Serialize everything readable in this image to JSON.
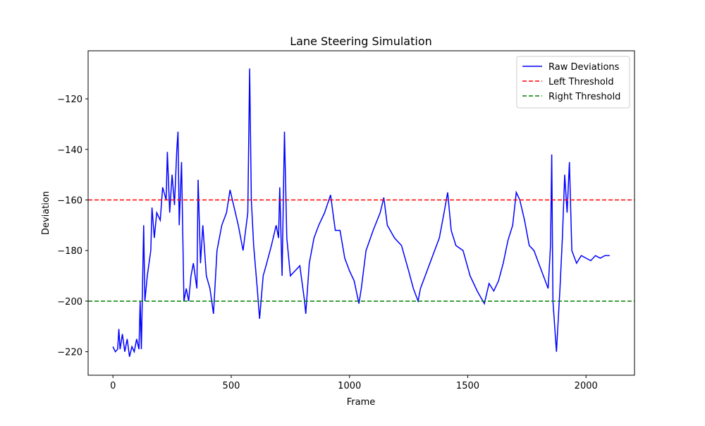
{
  "chart_data": {
    "type": "line",
    "title": "Lane Steering Simulation",
    "x_label": "Frame",
    "y_label": "Deviation",
    "x": [
      0,
      10,
      20,
      25,
      30,
      40,
      50,
      60,
      70,
      80,
      90,
      100,
      110,
      115,
      120,
      130,
      135,
      145,
      160,
      165,
      175,
      185,
      200,
      210,
      225,
      230,
      240,
      250,
      260,
      270,
      275,
      280,
      290,
      300,
      310,
      320,
      330,
      340,
      355,
      360,
      370,
      380,
      395,
      410,
      425,
      440,
      460,
      480,
      495,
      510,
      530,
      550,
      570,
      578,
      585,
      595,
      610,
      620,
      635,
      650,
      670,
      690,
      700,
      705,
      715,
      725,
      735,
      750,
      770,
      790,
      810,
      815,
      830,
      850,
      870,
      895,
      920,
      940,
      960,
      980,
      1000,
      1020,
      1040,
      1050,
      1070,
      1100,
      1130,
      1145,
      1160,
      1190,
      1220,
      1250,
      1270,
      1290,
      1300,
      1320,
      1340,
      1360,
      1380,
      1400,
      1415,
      1430,
      1450,
      1480,
      1510,
      1540,
      1570,
      1590,
      1610,
      1630,
      1650,
      1670,
      1690,
      1705,
      1720,
      1740,
      1760,
      1780,
      1800,
      1820,
      1840,
      1850,
      1855,
      1860,
      1875,
      1890,
      1900,
      1910,
      1920,
      1930,
      1940,
      1960,
      1980,
      2000,
      2020,
      2040,
      2060,
      2080,
      2100
    ],
    "series": [
      {
        "name": "Raw Deviations",
        "color": "#0000ff",
        "values": [
          -218,
          -220,
          -219,
          -211,
          -219,
          -213,
          -220,
          -215,
          -222,
          -218,
          -220,
          -215,
          -219,
          -200,
          -219,
          -170,
          -200,
          -190,
          -180,
          -163,
          -175,
          -165,
          -168,
          -155,
          -160,
          -141,
          -165,
          -150,
          -162,
          -140,
          -133,
          -170,
          -145,
          -200,
          -195,
          -200,
          -190,
          -185,
          -195,
          -152,
          -185,
          -170,
          -190,
          -195,
          -205,
          -180,
          -170,
          -165,
          -156,
          -162,
          -170,
          -180,
          -165,
          -108,
          -160,
          -178,
          -195,
          -207,
          -190,
          -185,
          -178,
          -170,
          -175,
          -155,
          -190,
          -133,
          -175,
          -190,
          -188,
          -186,
          -200,
          -205,
          -185,
          -175,
          -170,
          -165,
          -158,
          -172,
          -172,
          -183,
          -188,
          -192,
          -201,
          -195,
          -180,
          -172,
          -165,
          -159,
          -170,
          -175,
          -178,
          -188,
          -195,
          -200,
          -195,
          -190,
          -185,
          -180,
          -175,
          -165,
          -157,
          -172,
          -178,
          -180,
          -190,
          -196,
          -201,
          -193,
          -196,
          -192,
          -185,
          -176,
          -170,
          -157,
          -160,
          -168,
          -178,
          -180,
          -185,
          -190,
          -195,
          -178,
          -142,
          -200,
          -220,
          -195,
          -175,
          -150,
          -165,
          -145,
          -180,
          -185,
          -182,
          -183,
          -184,
          -182,
          -183,
          -182,
          -182
        ]
      }
    ],
    "hlines": [
      {
        "name": "Left Threshold",
        "color": "#ff0000",
        "value": -160
      },
      {
        "name": "Right Threshold",
        "color": "#008000",
        "value": -200
      }
    ],
    "xlim": [
      -105,
      2205
    ],
    "ylim": [
      -229.3,
      -101
    ],
    "xticks": [
      0,
      500,
      1000,
      1500,
      2000
    ],
    "yticks": [
      {
        "value": -220,
        "label": "−220"
      },
      {
        "value": -200,
        "label": "−200"
      },
      {
        "value": -180,
        "label": "−180"
      },
      {
        "value": -160,
        "label": "−160"
      },
      {
        "value": -140,
        "label": "−140"
      },
      {
        "value": -120,
        "label": "−120"
      }
    ],
    "legend": "upper right"
  }
}
